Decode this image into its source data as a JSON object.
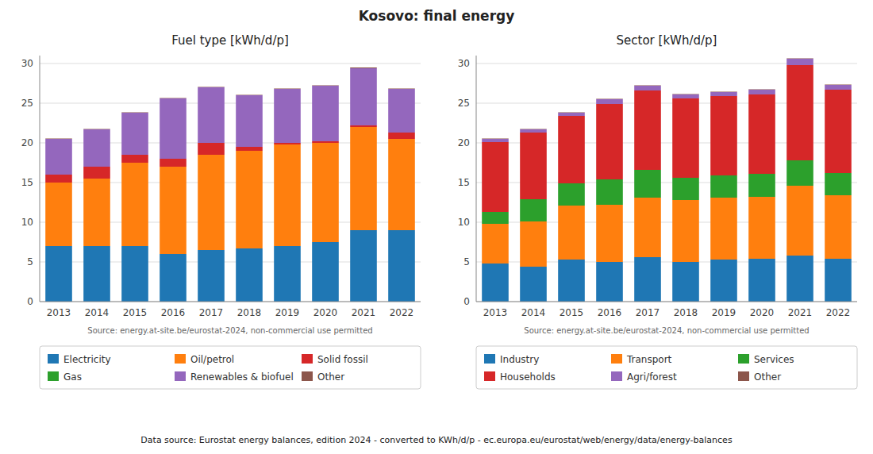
{
  "title": "Kosovo: final energy",
  "annotations": [
    "Data source: Eurostat energy balances, edition 2024 - converted to KWh/d/p - ec.europa.eu/eurostat/web/energy/data/energy-balances"
  ],
  "chart_data": [
    {
      "type": "bar",
      "stacked": true,
      "grid": true,
      "legend": "bottom",
      "title": "Fuel type [kWh/d/p]",
      "categories": [
        "2013",
        "2014",
        "2015",
        "2016",
        "2017",
        "2018",
        "2019",
        "2020",
        "2021",
        "2022"
      ],
      "series": [
        {
          "name": "Electricity",
          "color": "#1f77b4",
          "values": [
            7.0,
            7.0,
            7.0,
            6.0,
            6.5,
            6.7,
            7.0,
            7.5,
            9.0,
            9.0
          ]
        },
        {
          "name": "Oil/petrol",
          "color": "#ff7f0e",
          "values": [
            8.0,
            8.5,
            10.5,
            11.0,
            12.0,
            12.3,
            12.8,
            12.5,
            13.0,
            11.5
          ]
        },
        {
          "name": "Solid fossil",
          "color": "#d62728",
          "values": [
            1.0,
            1.5,
            1.0,
            1.0,
            1.5,
            0.5,
            0.2,
            0.2,
            0.2,
            0.8
          ]
        },
        {
          "name": "Gas",
          "color": "#2ca02c",
          "values": [
            0.0,
            0.0,
            0.0,
            0.0,
            0.0,
            0.0,
            0.0,
            0.0,
            0.0,
            0.0
          ]
        },
        {
          "name": "Renewables & biofuel",
          "color": "#9467bd",
          "values": [
            4.5,
            4.7,
            5.3,
            7.6,
            7.0,
            6.5,
            6.8,
            7.0,
            7.2,
            5.5
          ]
        },
        {
          "name": "Other",
          "color": "#8c564b",
          "values": [
            0.05,
            0.05,
            0.05,
            0.05,
            0.05,
            0.05,
            0.05,
            0.05,
            0.1,
            0.05
          ]
        }
      ],
      "ylim": [
        0,
        31
      ],
      "yticks": [
        0,
        5,
        10,
        15,
        20,
        25,
        30
      ],
      "annotations": [
        "Source: energy.at-site.be/eurostat-2024, non-commercial use permitted"
      ]
    },
    {
      "type": "bar",
      "stacked": true,
      "grid": true,
      "legend": "bottom",
      "title": "Sector [kWh/d/p]",
      "categories": [
        "2013",
        "2014",
        "2015",
        "2016",
        "2017",
        "2018",
        "2019",
        "2020",
        "2021",
        "2022"
      ],
      "series": [
        {
          "name": "Industry",
          "color": "#1f77b4",
          "values": [
            4.8,
            4.4,
            5.3,
            5.0,
            5.6,
            5.0,
            5.3,
            5.4,
            5.8,
            5.4
          ]
        },
        {
          "name": "Transport",
          "color": "#ff7f0e",
          "values": [
            5.0,
            5.7,
            6.8,
            7.2,
            7.5,
            7.8,
            7.8,
            7.8,
            8.8,
            8.0
          ]
        },
        {
          "name": "Services",
          "color": "#2ca02c",
          "values": [
            1.5,
            2.8,
            2.8,
            3.2,
            3.5,
            2.8,
            2.8,
            2.9,
            3.2,
            2.8
          ]
        },
        {
          "name": "Households",
          "color": "#d62728",
          "values": [
            8.8,
            8.4,
            8.5,
            9.5,
            10.0,
            10.0,
            10.0,
            10.0,
            12.0,
            10.5
          ]
        },
        {
          "name": "Agri/forest",
          "color": "#9467bd",
          "values": [
            0.4,
            0.4,
            0.4,
            0.6,
            0.6,
            0.5,
            0.5,
            0.6,
            0.8,
            0.6
          ]
        },
        {
          "name": "Other",
          "color": "#8c564b",
          "values": [
            0.05,
            0.05,
            0.05,
            0.05,
            0.05,
            0.05,
            0.05,
            0.05,
            0.05,
            0.05
          ]
        }
      ],
      "ylim": [
        0,
        31
      ],
      "yticks": [
        0,
        5,
        10,
        15,
        20,
        25,
        30
      ],
      "annotations": [
        "Source: energy.at-site.be/eurostat-2024, non-commercial use permitted"
      ]
    }
  ]
}
